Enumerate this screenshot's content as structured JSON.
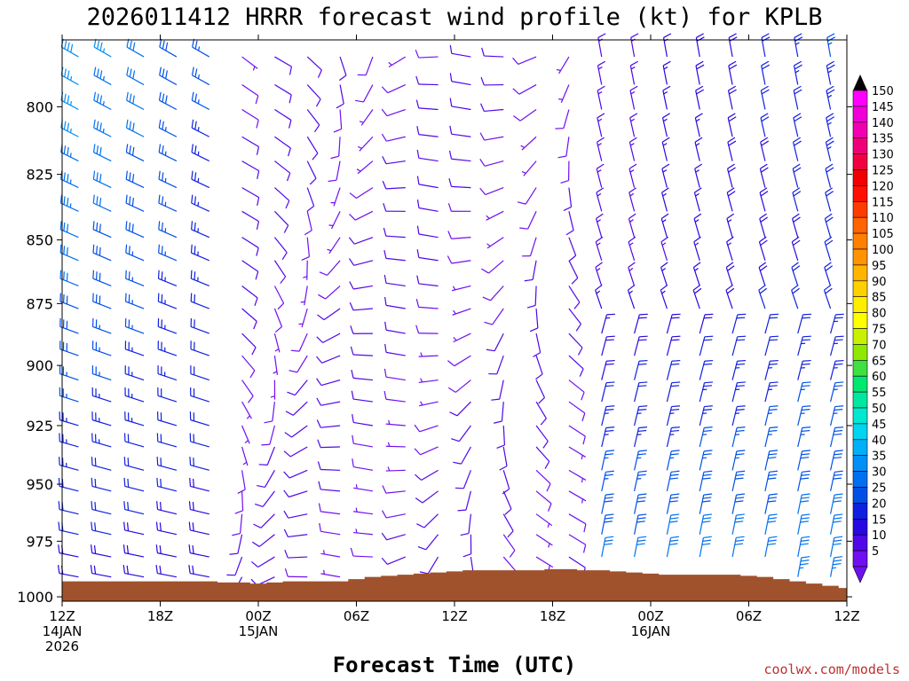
{
  "chart_data": {
    "type": "wind-barb-profile",
    "title": "2026011412 HRRR forecast wind profile (kt) for KPLB",
    "xlabel": "Forecast Time (UTC)",
    "ylabel": "",
    "credit": "coolwx.com/models",
    "x_range_hours": [
      0,
      48
    ],
    "y_range_hpa": [
      1002,
      776
    ],
    "y_scale": "pressure (reversed)",
    "y_ticks": [
      "800",
      "825",
      "850",
      "875",
      "900",
      "925",
      "950",
      "975",
      "1000"
    ],
    "y_tick_values": [
      800,
      825,
      850,
      875,
      900,
      925,
      950,
      975,
      1000
    ],
    "x_ticks": [
      {
        "hour": 0,
        "line1": "12Z",
        "line2": "14JAN",
        "line3": "2026"
      },
      {
        "hour": 6,
        "line1": "18Z",
        "line2": "",
        "line3": ""
      },
      {
        "hour": 12,
        "line1": "00Z",
        "line2": "15JAN",
        "line3": ""
      },
      {
        "hour": 18,
        "line1": "06Z",
        "line2": "",
        "line3": ""
      },
      {
        "hour": 24,
        "line1": "12Z",
        "line2": "",
        "line3": ""
      },
      {
        "hour": 30,
        "line1": "18Z",
        "line2": "",
        "line3": ""
      },
      {
        "hour": 36,
        "line1": "00Z",
        "line2": "16JAN",
        "line3": ""
      },
      {
        "hour": 42,
        "line1": "06Z",
        "line2": "",
        "line3": ""
      },
      {
        "hour": 48,
        "line1": "12Z",
        "line2": "",
        "line3": ""
      }
    ],
    "barb_levels_hpa": [
      782,
      792,
      801,
      811,
      820,
      830,
      839,
      849,
      858,
      868,
      877,
      887,
      896,
      906,
      915,
      925,
      934,
      944,
      953,
      963,
      972,
      982,
      991
    ],
    "terrain_surface_hpa": {
      "hours": [
        0,
        1,
        2,
        3,
        4,
        5,
        6,
        7,
        8,
        9,
        10,
        11,
        12,
        13,
        14,
        15,
        16,
        17,
        18,
        19,
        20,
        21,
        22,
        23,
        24,
        25,
        26,
        27,
        28,
        29,
        30,
        31,
        32,
        33,
        34,
        35,
        36,
        37,
        38,
        39,
        40,
        41,
        42,
        43,
        44,
        45,
        46,
        47,
        48
      ],
      "pressure": [
        993,
        993,
        993,
        993,
        993,
        993,
        993,
        993,
        993,
        993,
        993.5,
        993.5,
        994,
        993.5,
        993,
        993,
        993,
        993,
        992,
        991,
        990.5,
        990,
        989.5,
        989,
        988.5,
        988,
        988,
        988,
        988,
        988,
        987.5,
        987.5,
        988,
        988,
        988.5,
        989,
        989.5,
        990,
        990,
        990,
        990,
        990,
        990.5,
        991,
        992,
        993,
        994,
        995,
        996
      ]
    },
    "colorbar": {
      "values": [
        "150",
        "145",
        "140",
        "135",
        "130",
        "125",
        "120",
        "115",
        "110",
        "105",
        "100",
        "95",
        "90",
        "85",
        "80",
        "75",
        "70",
        "65",
        "60",
        "55",
        "50",
        "45",
        "40",
        "35",
        "30",
        "25",
        "20",
        "15",
        "10",
        "5"
      ],
      "colors": [
        "#ff00ff",
        "#f000d8",
        "#f000b0",
        "#f00078",
        "#f00040",
        "#f00000",
        "#ff1000",
        "#ff3c00",
        "#ff6400",
        "#ff8000",
        "#ff9400",
        "#ffb400",
        "#ffd000",
        "#ffee00",
        "#ffff00",
        "#c8f000",
        "#90e800",
        "#40e040",
        "#00e870",
        "#00e8a0",
        "#00e8d0",
        "#00d4f0",
        "#00b0f8",
        "#0090f8",
        "#0070f0",
        "#0050e8",
        "#1020e0",
        "#2808e0",
        "#5008e8",
        "#7010f0"
      ],
      "label_list_order": "top-to-bottom"
    },
    "colors": {
      "terrain": "#a0522d",
      "frame": "#000000",
      "background": "#ffffff"
    }
  }
}
